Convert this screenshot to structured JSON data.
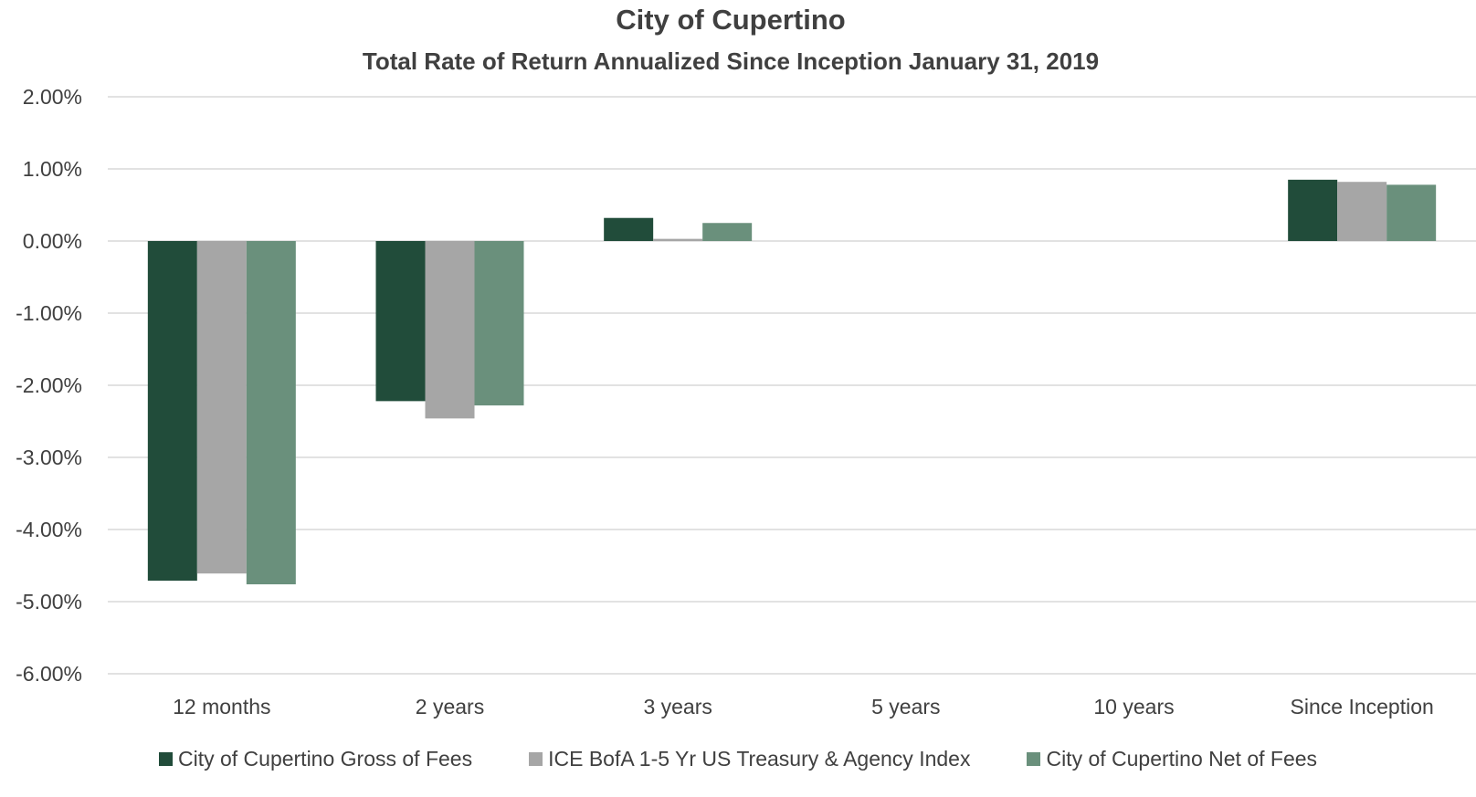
{
  "chart_data": {
    "type": "bar",
    "title": "City of Cupertino",
    "subtitle": "Total Rate of Return Annualized Since Inception January 31, 2019",
    "categories": [
      "12 months",
      "2 years",
      "3 years",
      "5 years",
      "10 years",
      "Since Inception"
    ],
    "series": [
      {
        "name": "City of Cupertino Gross of Fees",
        "color": "#214c3a",
        "values": [
          -4.71,
          -2.22,
          0.32,
          null,
          null,
          0.85
        ]
      },
      {
        "name": "ICE BofA 1-5 Yr US Treasury & Agency Index",
        "color": "#a6a6a6",
        "values": [
          -4.61,
          -2.46,
          0.03,
          null,
          null,
          0.82
        ]
      },
      {
        "name": "City of Cupertino Net of Fees",
        "color": "#6a907c",
        "values": [
          -4.76,
          -2.28,
          0.25,
          null,
          null,
          0.78
        ]
      }
    ],
    "y_tick_labels": [
      "2.00%",
      "1.00%",
      "0.00%",
      "-1.00%",
      "-2.00%",
      "-3.00%",
      "-4.00%",
      "-5.00%",
      "-6.00%"
    ],
    "y_ticks": [
      2,
      1,
      0,
      -1,
      -2,
      -3,
      -4,
      -5,
      -6
    ],
    "ylim": [
      -6,
      2
    ],
    "grid": true,
    "legend_position": "bottom"
  }
}
